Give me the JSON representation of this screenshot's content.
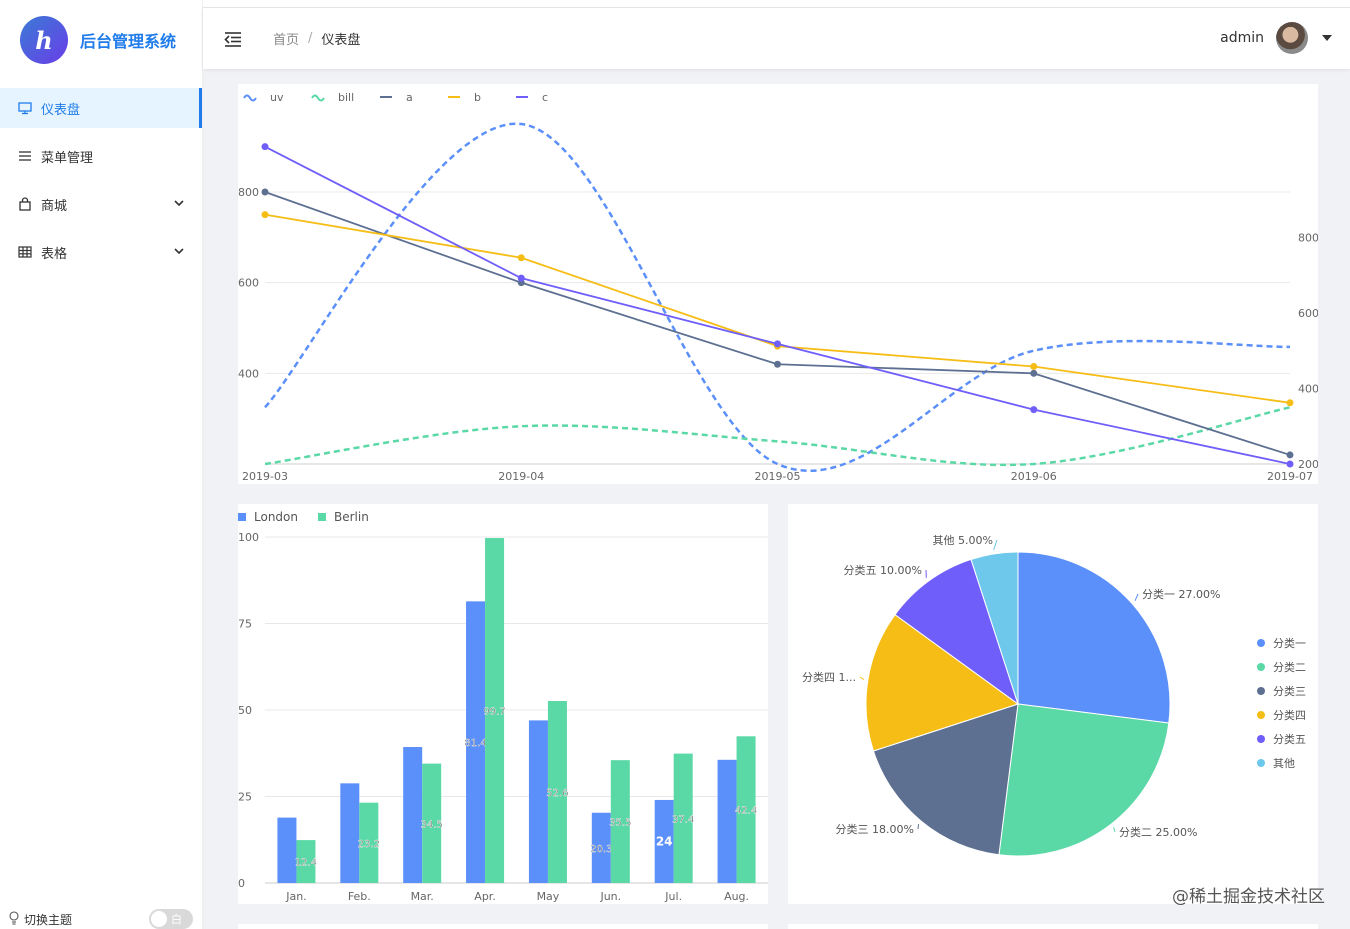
{
  "app": {
    "logo_letter": "h",
    "title": "后台管理系统"
  },
  "sidebar": {
    "items": [
      {
        "label": "仪表盘",
        "icon": "monitor-icon",
        "active": true
      },
      {
        "label": "菜单管理",
        "icon": "list-icon"
      },
      {
        "label": "商城",
        "icon": "shopping-bag-icon",
        "has_children": true
      },
      {
        "label": "表格",
        "icon": "table-icon",
        "has_children": true
      }
    ],
    "theme_label": "切换主题",
    "theme_toggle_text": "白"
  },
  "header": {
    "breadcrumb": [
      "首页",
      "仪表盘"
    ],
    "separator": "/",
    "username": "admin"
  },
  "colors": {
    "accent": "#1f7cea",
    "blue": "#5b8ff9",
    "green": "#5ad8a6",
    "gray": "#5d7092",
    "yellow": "#f6bd16",
    "purple": "#6f5ef9",
    "cyan": "#6dc8ec"
  },
  "chart_data": [
    {
      "type": "line",
      "x": [
        "2019-03",
        "2019-04",
        "2019-05",
        "2019-06",
        "2019-07"
      ],
      "series": [
        {
          "name": "uv",
          "style": "dashed-smooth",
          "axis": "right",
          "color": "#5b8ff9",
          "values": [
            350,
            1100,
            200,
            500,
            510
          ]
        },
        {
          "name": "bill",
          "style": "dashed-smooth",
          "axis": "right",
          "color": "#5ad8a6",
          "values": [
            200,
            300,
            260,
            200,
            350
          ]
        },
        {
          "name": "a",
          "style": "line",
          "axis": "left",
          "color": "#5d7092",
          "values": [
            800,
            600,
            420,
            400,
            220
          ]
        },
        {
          "name": "b",
          "style": "line",
          "axis": "left",
          "color": "#f6bd16",
          "values": [
            750,
            655,
            460,
            415,
            335
          ]
        },
        {
          "name": "c",
          "style": "line",
          "axis": "left",
          "color": "#6f5ef9",
          "values": [
            900,
            610,
            465,
            320,
            200
          ]
        }
      ],
      "y_left": {
        "ticks": [
          "400",
          "600",
          "800"
        ],
        "range": [
          200,
          950
        ]
      },
      "y_right": {
        "ticks": [
          "200",
          "400",
          "600",
          "800"
        ],
        "range": [
          200,
          1100
        ]
      },
      "legend_position": "top-left"
    },
    {
      "type": "bar",
      "categories": [
        "Jan.",
        "Feb.",
        "Mar.",
        "Apr.",
        "May",
        "Jun.",
        "Jul.",
        "Aug."
      ],
      "series": [
        {
          "name": "London",
          "color": "#5b8ff9",
          "values": [
            18.9,
            28.8,
            39.3,
            81.4,
            47,
            20.3,
            24,
            35.6
          ]
        },
        {
          "name": "Berlin",
          "color": "#5ad8a6",
          "values": [
            12.4,
            23.2,
            34.5,
            99.7,
            52.6,
            35.5,
            37.4,
            42.4
          ]
        }
      ],
      "data_labels": {
        "London": [
          "",
          "",
          "",
          "81.4",
          "",
          "20.3",
          "24",
          ""
        ],
        "Berlin": [
          "12.4",
          "23.2",
          "34.5",
          "99.7",
          "52.6",
          "35.5",
          "37.4",
          "42.4"
        ]
      },
      "y_ticks": [
        "0",
        "25",
        "50",
        "75",
        "100"
      ],
      "ylim": [
        0,
        100
      ],
      "legend_position": "top-left"
    },
    {
      "type": "pie",
      "slices": [
        {
          "name": "分类一",
          "value": 27,
          "label": "分类一 27.00%",
          "color": "#5b8ff9"
        },
        {
          "name": "分类二",
          "value": 25,
          "label": "分类二 25.00%",
          "color": "#5ad8a6"
        },
        {
          "name": "分类三",
          "value": 18,
          "label": "分类三 18.00%",
          "color": "#5d7092"
        },
        {
          "name": "分类四",
          "value": 15,
          "label": "分类四 1...",
          "color": "#f6bd16"
        },
        {
          "name": "分类五",
          "value": 10,
          "label": "分类五 10.00%",
          "color": "#6f5ef9"
        },
        {
          "name": "其他",
          "value": 5,
          "label": "其他 5.00%",
          "color": "#6dc8ec"
        }
      ],
      "legend_position": "right"
    }
  ],
  "watermark": "@稀土掘金技术社区"
}
